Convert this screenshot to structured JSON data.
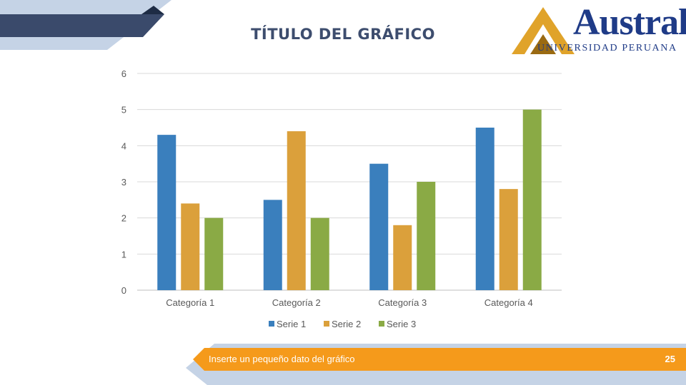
{
  "slide": {
    "title": "TÍTULO DEL GRÁFICO",
    "footer_text": "Inserte un pequeño dato del gráfico",
    "page_number": "25"
  },
  "logo": {
    "wordmark": "Austral",
    "subtitle": "UNIVERSIDAD PERUANA"
  },
  "colors": {
    "navy": "#3a4a6b",
    "light_blue": "#c5d3e6",
    "orange": "#f59a1b",
    "brand_blue": "#1f3b87"
  },
  "chart_data": {
    "type": "bar",
    "title": "TÍTULO DEL GRÁFICO",
    "categories": [
      "Categoría 1",
      "Categoría 2",
      "Categoría 3",
      "Categoría 4"
    ],
    "series": [
      {
        "name": "Serie 1",
        "values": [
          4.3,
          2.5,
          3.5,
          4.5
        ],
        "color": "#3a7fbd"
      },
      {
        "name": "Serie 2",
        "values": [
          2.4,
          4.4,
          1.8,
          2.8
        ],
        "color": "#dba03b"
      },
      {
        "name": "Serie 3",
        "values": [
          2,
          2,
          3,
          5
        ],
        "color": "#8aaa45"
      }
    ],
    "ylim": [
      0,
      6
    ],
    "yticks": [
      "0",
      "1",
      "2",
      "3",
      "4",
      "5",
      "6"
    ],
    "grid": true,
    "legend_position": "bottom"
  }
}
